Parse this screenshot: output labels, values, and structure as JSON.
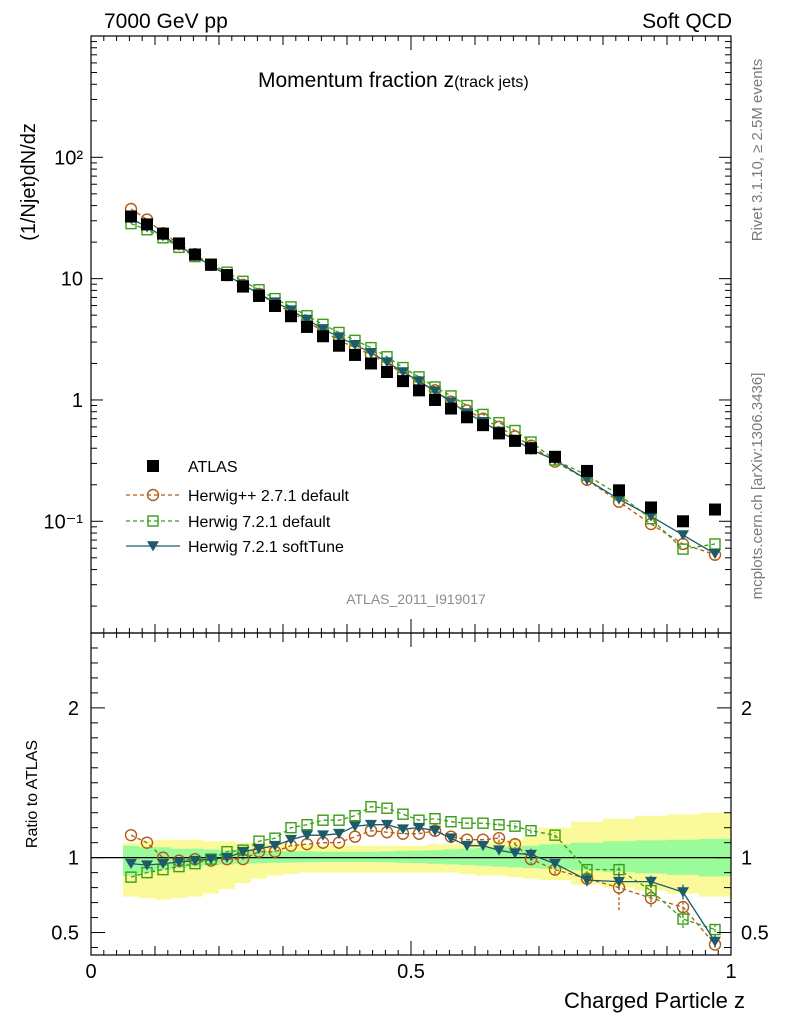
{
  "header": {
    "left": "7000 GeV pp",
    "right": "Soft QCD"
  },
  "side": {
    "rivet": "Rivet 3.1.10, ≥ 2.5M events",
    "mcplots": "mcplots.cern.ch [arXiv:1306.3436]"
  },
  "chart_data": [
    {
      "type": "scatter",
      "panel": "main",
      "title": "Momentum fraction z",
      "title_sub": "(track jets)",
      "ylabel": "(1/Njet)dN/dz",
      "xlabel": "",
      "xlim": [
        0,
        1
      ],
      "ylim": [
        0.012,
        1000
      ],
      "yscale": "log",
      "yticks": [
        0.1,
        1,
        10,
        100
      ],
      "ytick_labels": [
        "10⁻¹",
        "1",
        "10",
        "10²"
      ],
      "analysis_label": "ATLAS_2011_I919017",
      "legend_position": "lower-left",
      "x": [
        0.0625,
        0.0875,
        0.1125,
        0.1375,
        0.1625,
        0.1875,
        0.2125,
        0.2375,
        0.2625,
        0.2875,
        0.3125,
        0.3375,
        0.3625,
        0.3875,
        0.4125,
        0.4375,
        0.4625,
        0.4875,
        0.5125,
        0.5375,
        0.5625,
        0.5875,
        0.6125,
        0.6375,
        0.6625,
        0.6875,
        0.725,
        0.775,
        0.825,
        0.875,
        0.925,
        0.975
      ],
      "series": [
        {
          "name": "ATLAS",
          "style": "data",
          "color": "#000000",
          "values": [
            32.5,
            28.0,
            23.5,
            19.5,
            15.8,
            13.0,
            10.7,
            8.6,
            7.2,
            5.95,
            4.9,
            4.0,
            3.35,
            2.8,
            2.35,
            2.0,
            1.7,
            1.43,
            1.2,
            1.0,
            0.85,
            0.72,
            0.62,
            0.53,
            0.46,
            0.4,
            0.34,
            0.26,
            0.18,
            0.13,
            0.1,
            0.125
          ]
        },
        {
          "name": "Herwig++ 2.7.1 default",
          "style": "circle",
          "color": "#b35b13",
          "values": [
            37.5,
            30.7,
            23.7,
            19.4,
            15.9,
            13.0,
            10.7,
            8.9,
            7.5,
            6.2,
            5.3,
            4.4,
            3.7,
            3.1,
            2.7,
            2.35,
            2.0,
            1.65,
            1.4,
            1.2,
            0.97,
            0.82,
            0.7,
            0.6,
            0.5,
            0.42,
            0.31,
            0.22,
            0.145,
            0.095,
            0.065,
            0.053
          ]
        },
        {
          "name": "Herwig 7.2.1 default",
          "style": "square",
          "color": "#3a9e15",
          "values": [
            28.4,
            25.3,
            21.7,
            18.1,
            15.2,
            13.2,
            11.3,
            9.5,
            8.1,
            6.85,
            5.85,
            4.95,
            4.2,
            3.6,
            3.1,
            2.7,
            2.27,
            1.85,
            1.55,
            1.28,
            1.08,
            0.9,
            0.76,
            0.65,
            0.56,
            0.45,
            0.32,
            0.24,
            0.165,
            0.105,
            0.059,
            0.065
          ]
        },
        {
          "name": "Herwig 7.2.1 softTune",
          "style": "triangle",
          "color": "#1d5b6b",
          "values": [
            31.3,
            26.6,
            22.4,
            18.8,
            15.3,
            12.8,
            10.7,
            8.9,
            7.5,
            6.4,
            5.5,
            4.6,
            3.85,
            3.3,
            2.85,
            2.45,
            2.05,
            1.7,
            1.43,
            1.18,
            0.96,
            0.78,
            0.66,
            0.55,
            0.47,
            0.39,
            0.32,
            0.22,
            0.152,
            0.11,
            0.077,
            0.054
          ]
        }
      ]
    },
    {
      "type": "line",
      "panel": "ratio",
      "ylabel": "Ratio to ATLAS",
      "xlabel": "Charged Particle z",
      "xlim": [
        0,
        1
      ],
      "ylim": [
        0.35,
        2.5
      ],
      "yticks": [
        0.5,
        1,
        2
      ],
      "ytick_labels": [
        "0.5",
        "1",
        "2"
      ],
      "xticks": [
        0,
        0.5,
        1
      ],
      "xtick_labels": [
        "0",
        "0.5",
        "1"
      ],
      "x_edges": [
        0.05,
        0.075,
        0.1,
        0.125,
        0.15,
        0.175,
        0.2,
        0.225,
        0.25,
        0.275,
        0.3,
        0.325,
        0.35,
        0.375,
        0.4,
        0.425,
        0.45,
        0.475,
        0.5,
        0.525,
        0.55,
        0.575,
        0.6,
        0.625,
        0.65,
        0.675,
        0.7,
        0.75,
        0.8,
        0.85,
        0.9,
        0.95,
        1.0
      ],
      "band_inner": {
        "color": "#9afb9a",
        "low": [
          0.88,
          0.9,
          0.92,
          0.93,
          0.94,
          0.95,
          0.955,
          0.96,
          0.962,
          0.965,
          0.967,
          0.968,
          0.97,
          0.97,
          0.97,
          0.97,
          0.968,
          0.965,
          0.962,
          0.958,
          0.955,
          0.95,
          0.945,
          0.94,
          0.935,
          0.93,
          0.925,
          0.915,
          0.905,
          0.895,
          0.885,
          0.875
        ],
        "high": [
          1.08,
          1.07,
          1.07,
          1.06,
          1.06,
          1.055,
          1.05,
          1.05,
          1.048,
          1.045,
          1.043,
          1.042,
          1.04,
          1.04,
          1.04,
          1.04,
          1.042,
          1.045,
          1.048,
          1.05,
          1.055,
          1.06,
          1.065,
          1.07,
          1.075,
          1.08,
          1.09,
          1.1,
          1.11,
          1.115,
          1.12,
          1.125
        ]
      },
      "band_outer": {
        "color": "#fbfa9a",
        "low": [
          0.74,
          0.73,
          0.72,
          0.73,
          0.74,
          0.76,
          0.79,
          0.83,
          0.86,
          0.88,
          0.89,
          0.9,
          0.9,
          0.9,
          0.9,
          0.9,
          0.9,
          0.9,
          0.9,
          0.9,
          0.9,
          0.89,
          0.88,
          0.88,
          0.87,
          0.86,
          0.85,
          0.82,
          0.8,
          0.78,
          0.76,
          0.74
        ],
        "high": [
          1.1,
          1.11,
          1.12,
          1.12,
          1.12,
          1.11,
          1.11,
          1.1,
          1.1,
          1.1,
          1.09,
          1.09,
          1.08,
          1.08,
          1.08,
          1.08,
          1.08,
          1.08,
          1.08,
          1.09,
          1.09,
          1.1,
          1.1,
          1.11,
          1.12,
          1.14,
          1.2,
          1.24,
          1.26,
          1.28,
          1.29,
          1.3
        ]
      },
      "x": [
        0.0625,
        0.0875,
        0.1125,
        0.1375,
        0.1625,
        0.1875,
        0.2125,
        0.2375,
        0.2625,
        0.2875,
        0.3125,
        0.3375,
        0.3625,
        0.3875,
        0.4125,
        0.4375,
        0.4625,
        0.4875,
        0.5125,
        0.5375,
        0.5625,
        0.5875,
        0.6125,
        0.6375,
        0.6625,
        0.6875,
        0.725,
        0.775,
        0.825,
        0.875,
        0.925,
        0.975
      ],
      "series": [
        {
          "name": "Herwig++ 2.7.1 default",
          "style": "circle",
          "color": "#b35b13",
          "values": [
            1.15,
            1.1,
            1.0,
            0.98,
            0.99,
            0.98,
            0.99,
            0.99,
            1.04,
            1.04,
            1.08,
            1.09,
            1.1,
            1.1,
            1.14,
            1.18,
            1.17,
            1.16,
            1.16,
            1.18,
            1.14,
            1.12,
            1.12,
            1.13,
            1.09,
            0.99,
            0.92,
            0.86,
            0.8,
            0.73,
            0.67,
            0.42
          ],
          "errors": [
            0.005,
            0.005,
            0.005,
            0.005,
            0.005,
            0.005,
            0.005,
            0.005,
            0.005,
            0.005,
            0.005,
            0.005,
            0.005,
            0.005,
            0.005,
            0.005,
            0.005,
            0.005,
            0.005,
            0.005,
            0.005,
            0.005,
            0.005,
            0.03,
            0.04,
            0.04,
            0.03,
            0.05,
            0.15,
            0.06,
            0.05,
            0.02
          ]
        },
        {
          "name": "Herwig 7.2.1 default",
          "style": "square",
          "color": "#3a9e15",
          "values": [
            0.87,
            0.9,
            0.92,
            0.94,
            0.96,
            0.99,
            1.04,
            1.05,
            1.11,
            1.13,
            1.2,
            1.22,
            1.25,
            1.25,
            1.28,
            1.34,
            1.33,
            1.29,
            1.25,
            1.26,
            1.24,
            1.23,
            1.23,
            1.22,
            1.21,
            1.18,
            1.15,
            0.92,
            0.92,
            0.78,
            0.59,
            0.52
          ],
          "errors": [
            0.005,
            0.005,
            0.005,
            0.005,
            0.005,
            0.005,
            0.005,
            0.005,
            0.005,
            0.005,
            0.005,
            0.005,
            0.005,
            0.005,
            0.005,
            0.005,
            0.005,
            0.005,
            0.005,
            0.005,
            0.005,
            0.005,
            0.005,
            0.01,
            0.02,
            0.02,
            0.02,
            0.03,
            0.04,
            0.05,
            0.06,
            0.05
          ]
        },
        {
          "name": "Herwig 7.2.1 softTune",
          "style": "triangle",
          "color": "#1d5b6b",
          "values": [
            0.96,
            0.95,
            0.96,
            0.97,
            0.98,
            0.99,
            1.0,
            1.04,
            1.06,
            1.08,
            1.12,
            1.15,
            1.15,
            1.16,
            1.21,
            1.22,
            1.22,
            1.19,
            1.2,
            1.18,
            1.13,
            1.08,
            1.08,
            1.05,
            1.03,
            1.02,
            0.96,
            0.85,
            0.84,
            0.84,
            0.77,
            0.44
          ],
          "errors": [
            0.005,
            0.005,
            0.005,
            0.005,
            0.005,
            0.005,
            0.005,
            0.005,
            0.005,
            0.005,
            0.005,
            0.005,
            0.005,
            0.005,
            0.005,
            0.005,
            0.005,
            0.005,
            0.005,
            0.005,
            0.005,
            0.005,
            0.02,
            0.02,
            0.03,
            0.04,
            0.03,
            0.04,
            0.05,
            0.04,
            0.05,
            0.04
          ]
        }
      ]
    }
  ]
}
